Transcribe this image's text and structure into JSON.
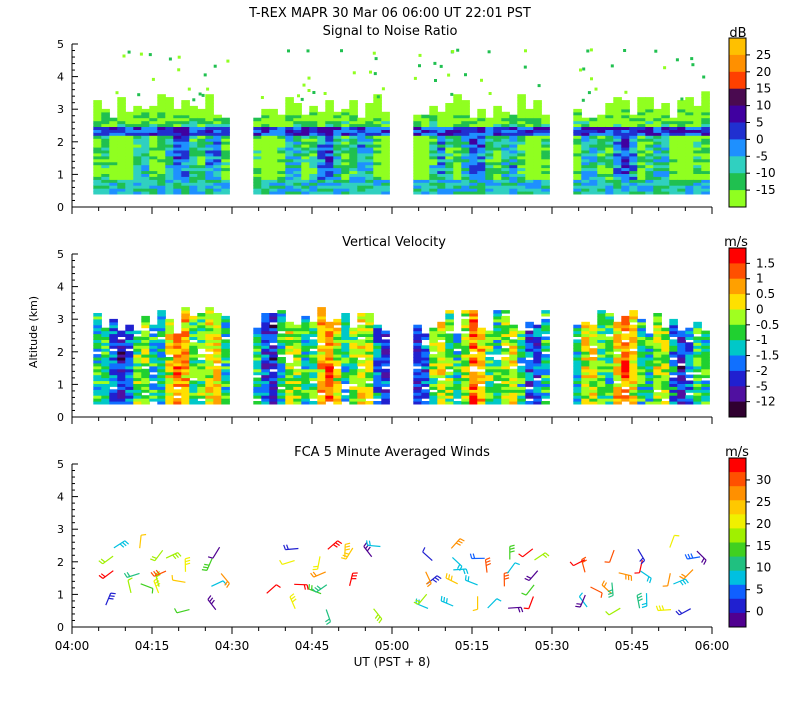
{
  "header": {
    "line1": "T-REX   MAPR 30 Mar 06   06:00 UT   22:01   PST"
  },
  "x_axis": {
    "label": "UT  (PST + 8)",
    "ticks": [
      "04:00",
      "04:15",
      "04:30",
      "04:45",
      "05:00",
      "05:15",
      "05:30",
      "05:45",
      "06:00"
    ]
  },
  "chart_data": [
    {
      "type": "heatmap",
      "title": "Signal to Noise Ratio",
      "ylabel": "",
      "ylim": [
        0,
        5
      ],
      "yticks": [
        0,
        1,
        2,
        3,
        4,
        5
      ],
      "xlim": [
        0,
        120
      ],
      "xunit": "minutes after 04:00 UT",
      "colorbar": {
        "unit": "dB",
        "labels": [
          "25",
          "20",
          "15",
          "10",
          "5",
          "0",
          "-5",
          "-10",
          "-15"
        ],
        "colors": [
          "#ffc000",
          "#ff9000",
          "#ff4000",
          "#4a0a50",
          "#4000a0",
          "#2030d0",
          "#1e90ff",
          "#30d0c0",
          "#20c050",
          "#90ff20"
        ]
      },
      "data_segments_minutes": [
        [
          4,
          29
        ],
        [
          34,
          59
        ],
        [
          64,
          89
        ],
        [
          94,
          119
        ]
      ],
      "typical_top_km": 3.0,
      "typical_bottom_km": 0.4
    },
    {
      "type": "heatmap",
      "title": "Vertical Velocity",
      "ylabel": "Altitude (km)",
      "ylim": [
        0,
        5
      ],
      "yticks": [
        0,
        1,
        2,
        3,
        4,
        5
      ],
      "xlim": [
        0,
        120
      ],
      "colorbar": {
        "unit": "m/s",
        "labels": [
          "1.5",
          "1",
          "0.5",
          "0",
          "-0.5",
          "-1",
          "-1.5",
          "-2",
          "-5",
          "-12"
        ],
        "colors": [
          "#ff0000",
          "#ff5000",
          "#ffa000",
          "#ffe000",
          "#a0ff20",
          "#20d030",
          "#00c8c8",
          "#1070ff",
          "#2020d0",
          "#5010a0",
          "#300030"
        ]
      },
      "data_segments_minutes": [
        [
          4,
          29
        ],
        [
          34,
          59
        ],
        [
          64,
          89
        ],
        [
          94,
          119
        ]
      ],
      "typical_top_km": 2.8,
      "typical_bottom_km": 0.4
    },
    {
      "type": "scatter",
      "title": "FCA 5 Minute Averaged Winds",
      "ylabel": "",
      "ylim": [
        0,
        5
      ],
      "yticks": [
        0,
        1,
        2,
        3,
        4,
        5
      ],
      "xlim": [
        0,
        120
      ],
      "colorbar": {
        "unit": "m/s",
        "labels": [
          "30",
          "25",
          "20",
          "15",
          "10",
          "5",
          "0"
        ],
        "colors": [
          "#ff0000",
          "#ff5000",
          "#ff9000",
          "#ffc800",
          "#f0f000",
          "#a0f000",
          "#40d020",
          "#20c080",
          "#00c0e0",
          "#1060ff",
          "#2020d0",
          "#500090"
        ]
      },
      "barb_columns_minutes": [
        7,
        12,
        17,
        22,
        27,
        37,
        42,
        47,
        52,
        57,
        67,
        72,
        77,
        82,
        87,
        97,
        102,
        107,
        112,
        117
      ],
      "barb_altitudes_km": [
        0.6,
        1.0,
        1.3,
        1.7,
        2.1,
        2.4
      ]
    }
  ]
}
